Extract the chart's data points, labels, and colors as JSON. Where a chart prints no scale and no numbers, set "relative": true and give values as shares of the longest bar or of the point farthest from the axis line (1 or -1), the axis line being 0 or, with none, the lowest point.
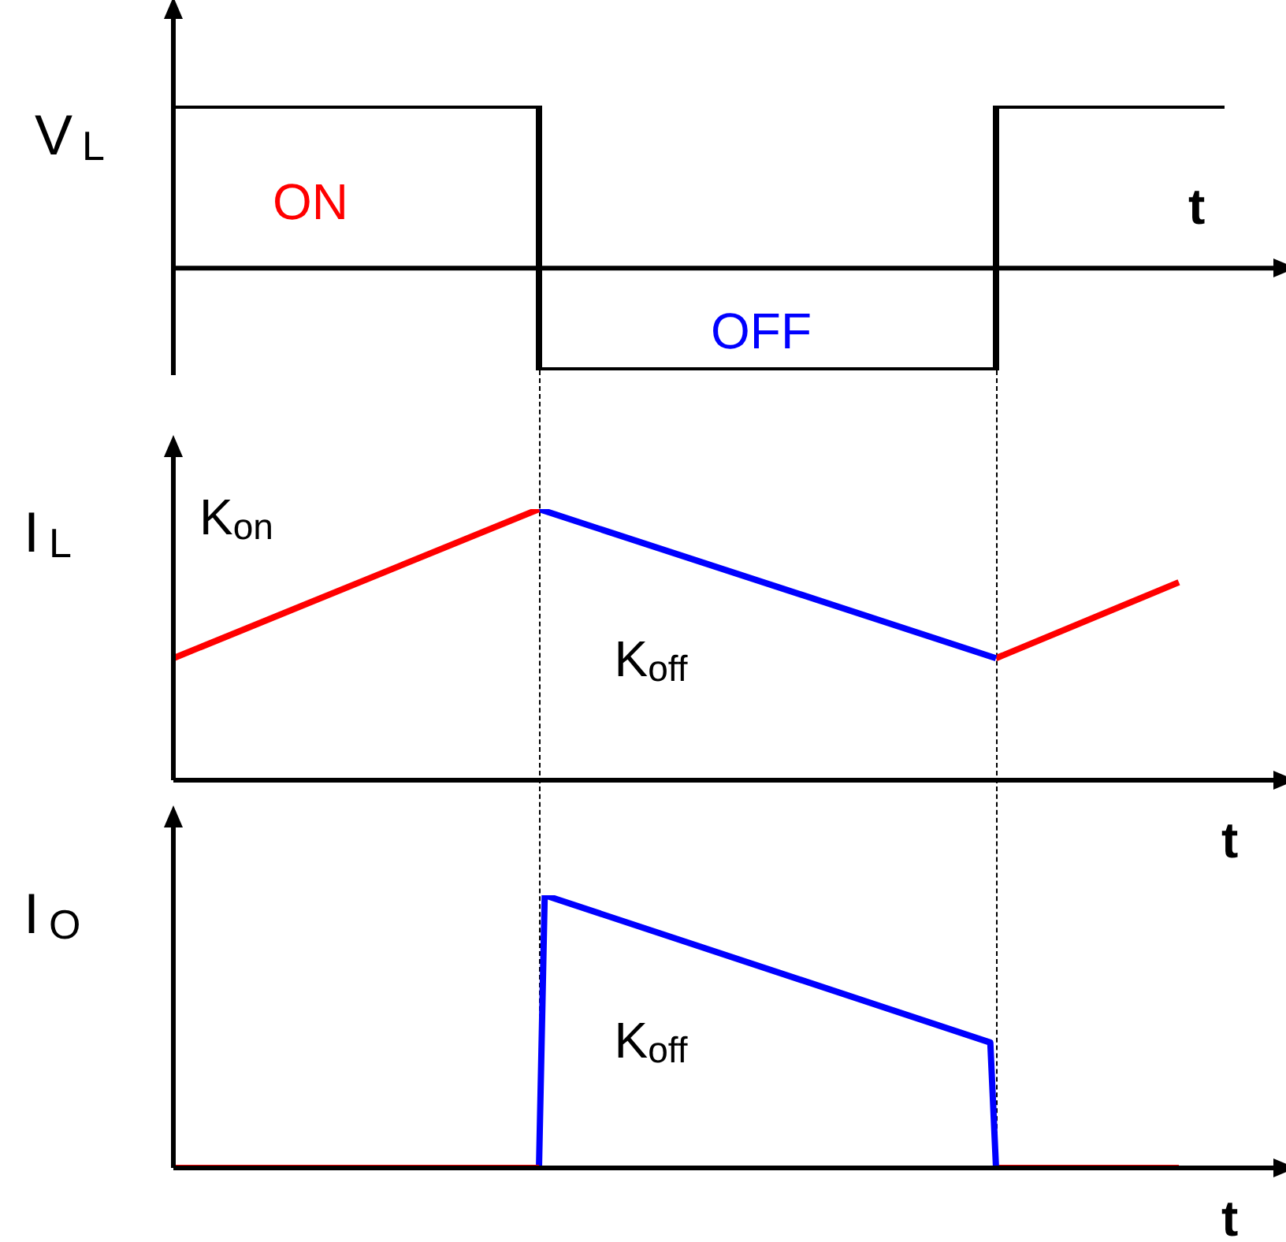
{
  "chart_data": [
    {
      "type": "step",
      "ylabel": "V$_{L}$",
      "xlabel": "t",
      "relative": true,
      "legend": false,
      "annotations": [
        "ON",
        "OFF"
      ],
      "categories": [
        null,
        null,
        null,
        null,
        null,
        null,
        null,
        null,
        null,
        null,
        null,
        null,
        null,
        null,
        null,
        null,
        null,
        null,
        null,
        null,
        null,
        null,
        null,
        null,
        null
      ],
      "series": [
        {
          "color": "#000000",
          "values": [
            1,
            1,
            1,
            1,
            1,
            1,
            1,
            1,
            -0.63,
            -0.63,
            -0.63,
            -0.63,
            -0.63,
            -0.63,
            -0.63,
            -0.63,
            -0.63,
            -0.63,
            1,
            1,
            1,
            1,
            1,
            1,
            null
          ]
        }
      ]
    },
    {
      "type": "line",
      "ylabel": "I$_{L}$",
      "xlabel": "t",
      "relative": true,
      "legend": false,
      "annotations": [
        "K$_{on}$",
        "K$_{off}$"
      ],
      "categories": [
        null,
        null,
        null,
        null,
        null,
        null,
        null,
        null,
        null,
        null,
        null,
        null,
        null,
        null,
        null,
        null,
        null,
        null,
        null,
        null,
        null,
        null,
        null,
        null,
        null
      ],
      "series": [
        {
          "color": "#ff0000",
          "values": [
            0.45,
            null,
            null,
            null,
            null,
            null,
            null,
            null,
            1,
            null,
            null,
            null,
            null,
            null,
            null,
            null,
            null,
            null,
            null,
            null,
            null,
            null,
            null,
            null,
            null
          ]
        },
        {
          "color": "#0000ff",
          "values": [
            null,
            null,
            null,
            null,
            null,
            null,
            null,
            null,
            1,
            null,
            null,
            null,
            null,
            null,
            null,
            null,
            null,
            null,
            0.45,
            null,
            null,
            null,
            null,
            null,
            null
          ]
        },
        {
          "color": "#ff0000",
          "values": [
            null,
            null,
            null,
            null,
            null,
            null,
            null,
            null,
            null,
            null,
            null,
            null,
            null,
            null,
            null,
            null,
            null,
            null,
            0.45,
            null,
            null,
            null,
            0.73,
            null,
            null
          ]
        }
      ]
    },
    {
      "type": "line",
      "ylabel": "I$_{O}$",
      "xlabel": "t",
      "relative": true,
      "legend": false,
      "annotations": [
        "K$_{off}$"
      ],
      "categories": [
        null,
        null,
        null,
        null,
        null,
        null,
        null,
        null,
        null,
        null,
        null,
        null,
        null,
        null,
        null,
        null,
        null,
        null,
        null,
        null,
        null,
        null,
        null,
        null,
        null,
        null,
        null,
        null,
        null,
        null,
        null,
        null,
        null,
        null,
        null,
        null,
        null,
        null,
        null,
        null,
        null,
        null,
        null,
        null,
        null,
        null,
        null,
        null,
        null,
        null,
        null,
        null,
        null,
        null,
        null,
        null,
        null,
        null,
        null,
        null,
        null,
        null,
        null,
        null,
        null,
        null,
        null,
        null,
        null,
        null,
        null,
        null,
        null,
        null,
        null,
        null,
        null,
        null,
        null,
        null,
        null,
        null,
        null,
        null,
        null,
        null,
        null,
        null,
        null,
        null,
        null,
        null,
        null,
        null,
        null,
        null,
        null,
        null,
        null,
        null,
        null,
        null,
        null,
        null,
        null,
        null,
        null,
        null,
        null,
        null,
        null,
        null,
        null,
        null,
        null,
        null,
        null,
        null,
        null,
        null,
        null,
        null,
        null,
        null,
        null,
        null,
        null,
        null,
        null,
        null,
        null,
        null,
        null,
        null,
        null,
        null,
        null,
        null,
        null,
        null,
        null,
        null,
        null,
        null,
        null,
        null,
        null,
        null,
        null,
        null,
        null,
        null,
        null,
        null,
        null,
        null,
        null,
        null,
        null,
        null,
        null,
        null,
        null,
        null,
        null,
        null,
        null,
        null,
        null,
        null,
        null,
        null,
        null,
        null,
        null,
        null,
        null,
        null,
        null,
        null,
        null,
        null,
        null,
        null,
        null,
        null,
        null,
        null,
        null,
        null,
        null,
        null,
        null
      ],
      "series": [
        {
          "color": "#ff0000",
          "values": [
            0,
            null,
            null,
            null,
            null,
            null,
            null,
            null,
            null,
            null,
            null,
            null,
            null,
            null,
            null,
            null,
            null,
            null,
            null,
            null,
            null,
            null,
            null,
            null,
            null,
            null,
            null,
            null,
            null,
            null,
            null,
            null,
            null,
            null,
            null,
            null,
            null,
            null,
            null,
            null,
            null,
            null,
            null,
            null,
            null,
            null,
            null,
            null,
            null,
            null,
            null,
            null,
            null,
            null,
            null,
            null,
            null,
            null,
            null,
            null,
            null,
            null,
            null,
            null,
            0,
            null,
            null,
            null,
            null,
            null,
            null,
            null,
            null,
            null,
            null,
            null,
            null,
            null,
            null,
            null,
            null,
            null,
            null,
            null,
            null,
            null,
            null,
            null,
            null,
            null,
            null,
            null,
            null,
            null,
            null,
            null,
            null,
            null,
            null,
            null,
            null,
            null,
            null,
            null,
            null,
            null,
            null,
            null,
            null,
            null,
            null,
            null,
            null,
            null,
            null,
            null,
            null,
            null,
            null,
            null,
            null,
            null,
            null,
            null,
            null,
            null,
            null,
            null,
            null,
            null,
            null,
            null,
            null,
            null,
            null,
            null,
            null,
            null,
            null,
            null,
            null,
            null,
            null,
            null,
            null,
            null,
            null,
            null,
            null,
            null,
            null,
            null,
            null,
            null,
            null,
            null,
            null,
            null,
            null,
            null,
            null,
            null,
            null,
            null,
            null,
            null,
            null,
            null,
            null,
            null,
            null,
            null,
            null,
            null,
            null,
            null,
            null,
            null,
            null,
            null,
            null,
            null,
            null,
            null,
            null,
            null,
            null,
            null,
            null,
            null,
            null,
            null,
            null
          ]
        },
        {
          "color": "#0000ff",
          "values": [
            null,
            null,
            null,
            null,
            null,
            null,
            null,
            null,
            null,
            null,
            null,
            null,
            null,
            null,
            null,
            null,
            null,
            null,
            null,
            null,
            null,
            null,
            null,
            null,
            null,
            null,
            null,
            null,
            null,
            null,
            null,
            null,
            null,
            null,
            null,
            null,
            null,
            null,
            null,
            null,
            null,
            null,
            null,
            null,
            null,
            null,
            null,
            null,
            null,
            null,
            null,
            null,
            null,
            null,
            null,
            null,
            null,
            null,
            null,
            null,
            null,
            null,
            null,
            null,
            0,
            1,
            null,
            null,
            null,
            null,
            null,
            null,
            null,
            null,
            null,
            null,
            null,
            null,
            null,
            null,
            null,
            null,
            null,
            null,
            null,
            null,
            null,
            null,
            null,
            null,
            null,
            null,
            null,
            null,
            null,
            null,
            null,
            null,
            null,
            null,
            null,
            null,
            null,
            null,
            null,
            null,
            null,
            null,
            null,
            null,
            null,
            null,
            null,
            null,
            null,
            null,
            null,
            null,
            null,
            null,
            null,
            null,
            null,
            null,
            null,
            null,
            null,
            null,
            null,
            null,
            null,
            null,
            null,
            null,
            null,
            null,
            null,
            null,
            null,
            null,
            null,
            null,
            null,
            0.46,
            0,
            null,
            null,
            null,
            null,
            null,
            null,
            null,
            null,
            null,
            null,
            null,
            null,
            null,
            null,
            null,
            null,
            null,
            null,
            null,
            null,
            null,
            null,
            null,
            null,
            null,
            null,
            null,
            null,
            null,
            null,
            null,
            null,
            null,
            null,
            null,
            null,
            null,
            null,
            null,
            null,
            null,
            null,
            null,
            null,
            null,
            null,
            null,
            null
          ]
        },
        {
          "color": "#ff0000",
          "values": [
            null,
            null,
            null,
            null,
            null,
            null,
            null,
            null,
            null,
            null,
            null,
            null,
            null,
            null,
            null,
            null,
            null,
            null,
            null,
            null,
            null,
            null,
            null,
            null,
            null,
            null,
            null,
            null,
            null,
            null,
            null,
            null,
            null,
            null,
            null,
            null,
            null,
            null,
            null,
            null,
            null,
            null,
            null,
            null,
            null,
            null,
            null,
            null,
            null,
            null,
            null,
            null,
            null,
            null,
            null,
            null,
            null,
            null,
            null,
            null,
            null,
            null,
            null,
            null,
            null,
            null,
            null,
            null,
            null,
            null,
            null,
            null,
            null,
            null,
            null,
            null,
            null,
            null,
            null,
            null,
            null,
            null,
            null,
            null,
            null,
            null,
            null,
            null,
            null,
            null,
            null,
            null,
            null,
            null,
            null,
            null,
            null,
            null,
            null,
            null,
            null,
            null,
            null,
            null,
            null,
            null,
            null,
            null,
            null,
            null,
            null,
            null,
            null,
            null,
            null,
            null,
            null,
            null,
            null,
            null,
            null,
            null,
            null,
            null,
            null,
            null,
            null,
            null,
            null,
            null,
            null,
            null,
            null,
            null,
            null,
            null,
            null,
            null,
            null,
            null,
            null,
            null,
            null,
            null,
            0,
            null,
            null,
            null,
            null,
            null,
            null,
            null,
            null,
            null,
            null,
            null,
            null,
            null,
            null,
            null,
            null,
            null,
            null,
            null,
            null,
            null,
            null,
            null,
            null,
            null,
            null,
            null,
            null,
            null,
            null,
            null,
            0,
            null,
            null,
            null,
            null,
            null,
            null,
            null,
            null,
            null,
            null,
            null,
            null,
            null,
            null,
            null,
            null
          ]
        }
      ]
    }
  ]
}
